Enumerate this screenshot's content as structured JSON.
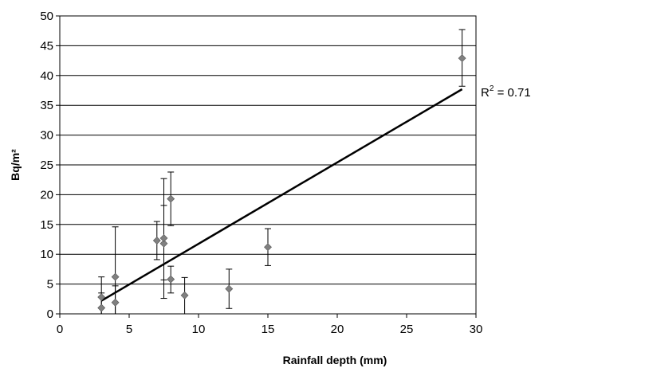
{
  "chart_data": {
    "type": "scatter",
    "xlabel": "Rainfall depth (mm)",
    "ylabel": "Bq/m²",
    "xlim": [
      0,
      30
    ],
    "ylim": [
      0,
      50
    ],
    "x_ticks": [
      0,
      5,
      10,
      15,
      20,
      25,
      30
    ],
    "y_ticks": [
      0,
      5,
      10,
      15,
      20,
      25,
      30,
      35,
      40,
      45,
      50
    ],
    "grid": "horizontal",
    "legend": "none",
    "marker_color": "#808080",
    "points": [
      {
        "x": 3.0,
        "y": 1.0,
        "err_low": 1.0,
        "err_high": 2.5
      },
      {
        "x": 3.0,
        "y": 2.8,
        "err_low": 2.8,
        "err_high": 3.4
      },
      {
        "x": 4.0,
        "y": 1.9,
        "err_low": 1.9,
        "err_high": 2.8
      },
      {
        "x": 4.0,
        "y": 6.2,
        "err_low": 6.2,
        "err_high": 8.4
      },
      {
        "x": 7.0,
        "y": 12.3,
        "err_low": 3.2,
        "err_high": 3.2
      },
      {
        "x": 7.5,
        "y": 11.8,
        "err_low": 9.2,
        "err_high": 6.4
      },
      {
        "x": 7.5,
        "y": 12.7,
        "err_low": 7.0,
        "err_high": 10.0
      },
      {
        "x": 8.0,
        "y": 19.3,
        "err_low": 4.5,
        "err_high": 4.5
      },
      {
        "x": 8.0,
        "y": 5.8,
        "err_low": 2.3,
        "err_high": 2.2
      },
      {
        "x": 9.0,
        "y": 3.1,
        "err_low": 3.1,
        "err_high": 3.0
      },
      {
        "x": 12.2,
        "y": 4.2,
        "err_low": 3.3,
        "err_high": 3.3
      },
      {
        "x": 15.0,
        "y": 11.2,
        "err_low": 3.1,
        "err_high": 3.1
      },
      {
        "x": 29.0,
        "y": 42.9,
        "err_low": 4.7,
        "err_high": 4.8
      }
    ],
    "trendline": {
      "x": [
        3.0,
        29.0
      ],
      "y": [
        2.2,
        37.7
      ]
    },
    "annotation": "R² = 0.71"
  }
}
